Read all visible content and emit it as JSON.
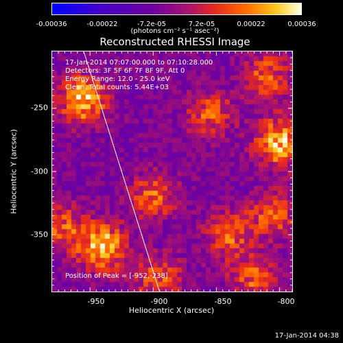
{
  "chart_data": {
    "type": "heatmap",
    "title": "Reconstructed RHESSI Image",
    "xlabel": "Heliocentric X (arcsec)",
    "ylabel": "Heliocentric Y (arcsec)",
    "xlim": [
      -980,
      -790
    ],
    "ylim": [
      -395,
      -205
    ],
    "xticks": [
      -950,
      -900,
      -850,
      -800
    ],
    "yticks": [
      -250,
      -300,
      -350
    ],
    "colorbar": {
      "range": [
        -0.00036,
        0.00036
      ],
      "tick_values": [
        -0.00036,
        -0.00022,
        -7.2e-05,
        7.2e-05,
        0.00022,
        0.00036
      ],
      "tick_labels": [
        "-0.00036",
        "-0.00022",
        "-7.2e-05",
        "7.2e-05",
        "0.00022",
        "0.00036"
      ],
      "units": "(photons cm⁻² s⁻¹ asec⁻²)"
    },
    "info_lines": [
      "17-Jan-2014 07:07:00.000 to 07:10:28.000",
      "Detectors: 3F 5F 6F 7F 8F 9F, Att 0",
      "Energy Range: 12.0 - 25.0 keV",
      "Clean,  Total counts: 5.44E+03"
    ],
    "peak_label": "Position of Peak = [-952,-238]",
    "peak_position": [
      -952,
      -238
    ],
    "limb_line": [
      [
        -955,
        -205
      ],
      [
        -895,
        -395
      ]
    ],
    "bright_sources": [
      {
        "x": -955,
        "y": -243,
        "level": 0.00036
      },
      {
        "x": -800,
        "y": -277,
        "level": 0.00036
      },
      {
        "x": -940,
        "y": -360,
        "level": 0.00036
      },
      {
        "x": -972,
        "y": -345,
        "level": 0.00022
      },
      {
        "x": -900,
        "y": -320,
        "level": 0.00022
      },
      {
        "x": -855,
        "y": -255,
        "level": 0.00022
      },
      {
        "x": -810,
        "y": -225,
        "level": 0.00022
      },
      {
        "x": -840,
        "y": -350,
        "level": 0.00022
      },
      {
        "x": -805,
        "y": -335,
        "level": 0.00022
      },
      {
        "x": -820,
        "y": -385,
        "level": 0.00022
      },
      {
        "x": -895,
        "y": -385,
        "level": 0.00022
      }
    ]
  },
  "timestamp": "17-Jan-2014 04:38",
  "colors": {
    "background": "#000000",
    "frame": "#ffffff"
  }
}
